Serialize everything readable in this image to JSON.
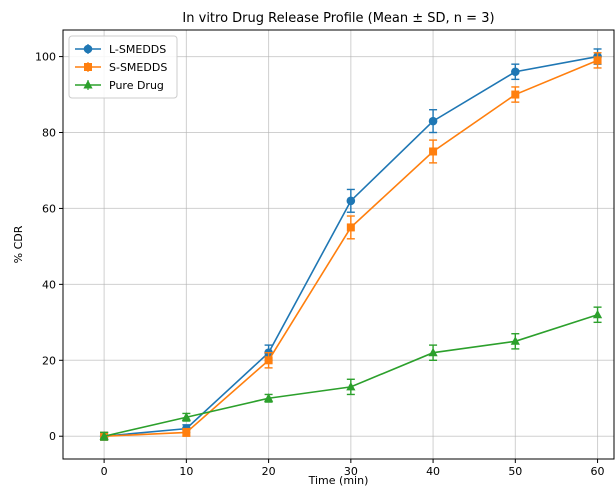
{
  "chart_data": {
    "type": "line",
    "title": "In vitro Drug Release Profile (Mean ± SD, n = 3)",
    "xlabel": "Time (min)",
    "ylabel": "% CDR",
    "x": [
      0,
      10,
      20,
      30,
      40,
      50,
      60
    ],
    "xticks": [
      0,
      10,
      20,
      30,
      40,
      50,
      60
    ],
    "yticks": [
      0,
      20,
      40,
      60,
      80,
      100
    ],
    "xlim": [
      -5,
      62
    ],
    "ylim": [
      -6,
      107
    ],
    "grid": true,
    "legend_position": "top-left",
    "series": [
      {
        "name": "L-SMEDDS",
        "color": "#1f77b4",
        "marker": "circle",
        "values": [
          0,
          2,
          22,
          62,
          83,
          96,
          100
        ],
        "errors": [
          1,
          1,
          2,
          3,
          3,
          2,
          2
        ]
      },
      {
        "name": "S-SMEDDS",
        "color": "#ff7f0e",
        "marker": "square",
        "values": [
          0,
          1,
          20,
          55,
          75,
          90,
          99
        ],
        "errors": [
          1,
          1,
          2,
          3,
          3,
          2,
          2
        ]
      },
      {
        "name": "Pure Drug",
        "color": "#2ca02c",
        "marker": "triangle",
        "values": [
          0,
          5,
          10,
          13,
          22,
          25,
          32
        ],
        "errors": [
          1,
          1,
          1,
          2,
          2,
          2,
          2
        ]
      }
    ]
  }
}
